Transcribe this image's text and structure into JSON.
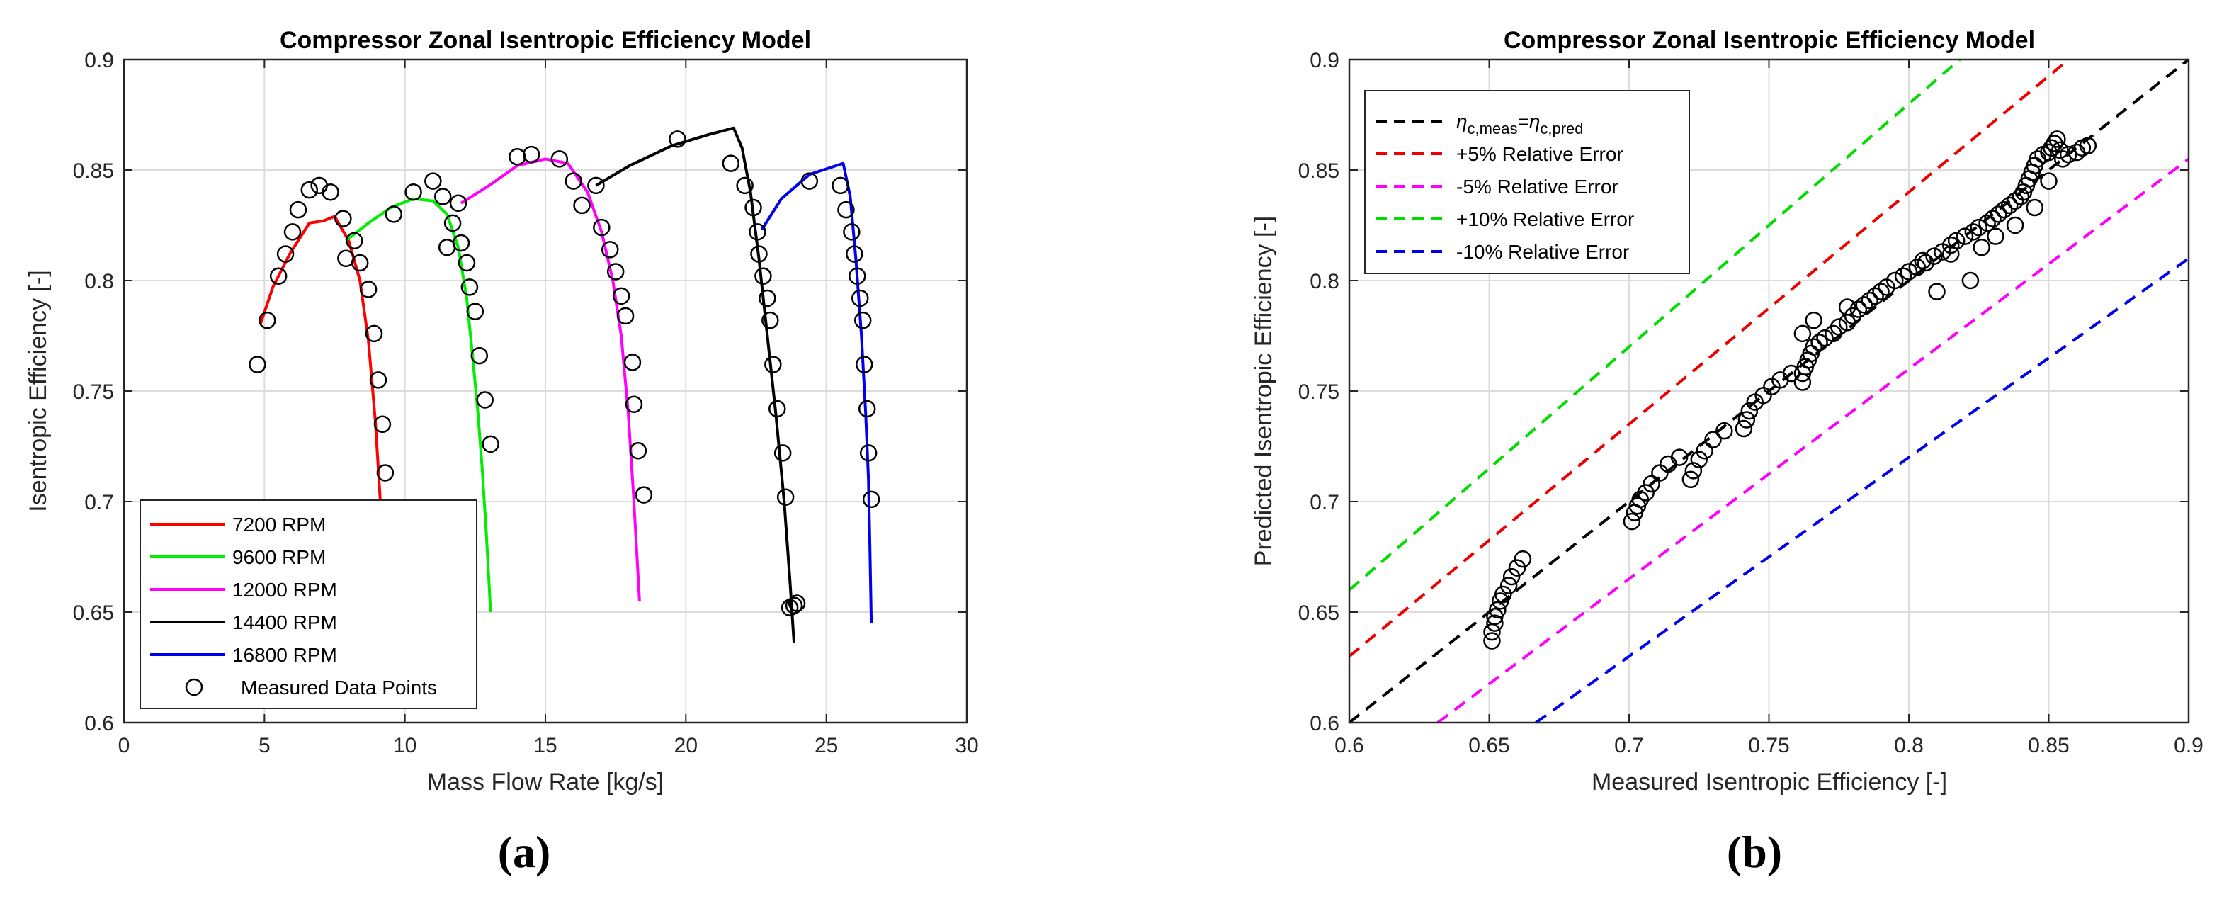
{
  "chart_data": [
    {
      "type": "line",
      "title": "Compressor Zonal Isentropic Efficiency Model",
      "xlabel": "Mass Flow Rate [kg/s]",
      "ylabel": "Isentropic Efficiency [-]",
      "xlim": [
        0,
        30
      ],
      "ylim": [
        0.6,
        0.9
      ],
      "xticks": [
        0,
        5,
        10,
        15,
        20,
        25,
        30
      ],
      "xtick_labels": [
        "0",
        "5",
        "10",
        "15",
        "20",
        "25",
        "30"
      ],
      "yticks": [
        0.6,
        0.65,
        0.7,
        0.75,
        0.8,
        0.85,
        0.9
      ],
      "ytick_labels": [
        "0.6",
        "0.65",
        "0.7",
        "0.75",
        "0.8",
        "0.85",
        "0.9"
      ],
      "grid": true,
      "legend_position": "bottom-left",
      "panel_label": "(a)",
      "series": [
        {
          "name": "7200 RPM",
          "color": "#ff0000",
          "x": [
            4.85,
            5.3,
            5.9,
            6.6,
            7.1,
            7.5,
            8.0,
            8.4,
            8.7,
            8.95,
            9.15
          ],
          "y": [
            0.78,
            0.797,
            0.812,
            0.826,
            0.827,
            0.829,
            0.818,
            0.8,
            0.773,
            0.736,
            0.695
          ]
        },
        {
          "name": "9600 RPM",
          "color": "#00ee00",
          "x": [
            7.9,
            8.7,
            9.5,
            10.3,
            11.0,
            11.5,
            11.9,
            12.2,
            12.4,
            12.6,
            12.75,
            12.9,
            13.05
          ],
          "y": [
            0.818,
            0.826,
            0.833,
            0.837,
            0.836,
            0.83,
            0.815,
            0.792,
            0.767,
            0.74,
            0.715,
            0.685,
            0.65
          ]
        },
        {
          "name": "12000 RPM",
          "color": "#ff00ff",
          "x": [
            12.0,
            13.0,
            14.0,
            15.0,
            15.8,
            16.5,
            17.0,
            17.4,
            17.7,
            17.95,
            18.15,
            18.35
          ],
          "y": [
            0.835,
            0.843,
            0.852,
            0.855,
            0.853,
            0.84,
            0.822,
            0.8,
            0.775,
            0.74,
            0.7,
            0.655
          ]
        },
        {
          "name": "14400 RPM",
          "color": "#000000",
          "x": [
            16.8,
            18.0,
            19.5,
            20.8,
            21.7,
            22.0,
            22.3,
            22.6,
            22.9,
            23.2,
            23.5,
            23.7,
            23.85
          ],
          "y": [
            0.843,
            0.852,
            0.861,
            0.866,
            0.869,
            0.86,
            0.84,
            0.81,
            0.775,
            0.74,
            0.7,
            0.665,
            0.636
          ]
        },
        {
          "name": "16800 RPM",
          "color": "#0000ee",
          "x": [
            22.7,
            23.4,
            24.4,
            25.6,
            25.85,
            26.05,
            26.25,
            26.4,
            26.5,
            26.55,
            26.6
          ],
          "y": [
            0.823,
            0.837,
            0.848,
            0.853,
            0.838,
            0.81,
            0.775,
            0.74,
            0.71,
            0.68,
            0.645
          ]
        },
        {
          "name": "Measured Data Points",
          "marker": "circle",
          "x": [
            4.75,
            5.1,
            5.5,
            5.75,
            6.0,
            6.2,
            6.6,
            6.95,
            7.35,
            7.8,
            7.9,
            8.2,
            8.4,
            8.7,
            8.9,
            9.05,
            9.2,
            9.3,
            9.6,
            10.3,
            11.0,
            11.35,
            11.5,
            11.7,
            11.9,
            12.0,
            12.2,
            12.3,
            12.5,
            12.65,
            12.85,
            13.05,
            14.0,
            14.5,
            15.5,
            16.0,
            16.3,
            16.8,
            17.0,
            17.3,
            17.5,
            17.7,
            17.85,
            18.1,
            18.15,
            18.3,
            18.5,
            19.7,
            21.6,
            22.1,
            22.4,
            22.55,
            22.6,
            22.75,
            22.9,
            23.0,
            23.1,
            23.25,
            23.45,
            23.55,
            23.7,
            23.85,
            23.95,
            24.4,
            25.5,
            25.7,
            25.9,
            26.0,
            26.1,
            26.2,
            26.3,
            26.35,
            26.45,
            26.5,
            26.6
          ],
          "y": [
            0.762,
            0.782,
            0.802,
            0.812,
            0.822,
            0.832,
            0.841,
            0.843,
            0.84,
            0.828,
            0.81,
            0.818,
            0.808,
            0.796,
            0.776,
            0.755,
            0.735,
            0.713,
            0.83,
            0.84,
            0.845,
            0.838,
            0.815,
            0.826,
            0.835,
            0.817,
            0.808,
            0.797,
            0.786,
            0.766,
            0.746,
            0.726,
            0.856,
            0.857,
            0.855,
            0.845,
            0.834,
            0.843,
            0.824,
            0.814,
            0.804,
            0.793,
            0.784,
            0.763,
            0.744,
            0.723,
            0.703,
            0.864,
            0.853,
            0.843,
            0.833,
            0.822,
            0.812,
            0.802,
            0.792,
            0.782,
            0.762,
            0.742,
            0.722,
            0.702,
            0.652,
            0.653,
            0.654,
            0.845,
            0.843,
            0.832,
            0.822,
            0.812,
            0.802,
            0.792,
            0.782,
            0.762,
            0.742,
            0.722,
            0.701
          ]
        }
      ]
    },
    {
      "type": "scatter",
      "title": "Compressor Zonal Isentropic Efficiency Model",
      "xlabel": "Measured Isentropic Efficiency [-]",
      "ylabel": "Predicted Isentropic Efficiency [-]",
      "xlim": [
        0.6,
        0.9
      ],
      "ylim": [
        0.6,
        0.9
      ],
      "xticks": [
        0.6,
        0.65,
        0.7,
        0.75,
        0.8,
        0.85,
        0.9
      ],
      "xtick_labels": [
        "0.6",
        "0.65",
        "0.7",
        "0.75",
        "0.8",
        "0.85",
        "0.9"
      ],
      "yticks": [
        0.6,
        0.65,
        0.7,
        0.75,
        0.8,
        0.85,
        0.9
      ],
      "ytick_labels": [
        "0.6",
        "0.65",
        "0.7",
        "0.75",
        "0.8",
        "0.85",
        "0.9"
      ],
      "grid": true,
      "legend_position": "top-left",
      "panel_label": "(b)",
      "reference_lines": [
        {
          "name": "η_c,meas=η_c,pred",
          "legend_main": "η",
          "legend_sub1": "c,meas",
          "legend_eq": "=η",
          "legend_sub2": "c,pred",
          "factor": 1.0,
          "color": "#000000"
        },
        {
          "name": "+5% Relative Error",
          "factor": 1.05,
          "color": "#ee0000"
        },
        {
          "name": "-5% Relative Error",
          "factor": 0.95,
          "color": "#ff00ff"
        },
        {
          "name": "+10% Relative Error",
          "factor": 1.1,
          "color": "#00dd00"
        },
        {
          "name": "-10% Relative Error",
          "factor": 0.9,
          "color": "#0000ee"
        }
      ],
      "points": {
        "x": [
          0.651,
          0.651,
          0.652,
          0.652,
          0.653,
          0.654,
          0.655,
          0.657,
          0.658,
          0.66,
          0.662,
          0.701,
          0.702,
          0.703,
          0.704,
          0.706,
          0.708,
          0.711,
          0.714,
          0.718,
          0.722,
          0.723,
          0.725,
          0.727,
          0.73,
          0.734,
          0.741,
          0.742,
          0.743,
          0.745,
          0.748,
          0.751,
          0.754,
          0.758,
          0.762,
          0.762,
          0.763,
          0.764,
          0.765,
          0.766,
          0.768,
          0.77,
          0.773,
          0.775,
          0.778,
          0.78,
          0.782,
          0.784,
          0.786,
          0.788,
          0.79,
          0.792,
          0.795,
          0.798,
          0.8,
          0.803,
          0.806,
          0.809,
          0.812,
          0.815,
          0.817,
          0.82,
          0.823,
          0.825,
          0.828,
          0.83,
          0.832,
          0.834,
          0.836,
          0.838,
          0.84,
          0.841,
          0.842,
          0.843,
          0.844,
          0.845,
          0.846,
          0.848,
          0.85,
          0.851,
          0.852,
          0.853,
          0.854,
          0.855,
          0.857,
          0.86,
          0.862,
          0.864,
          0.762,
          0.766,
          0.778,
          0.81,
          0.822,
          0.831,
          0.838,
          0.845,
          0.85,
          0.805,
          0.815,
          0.826
        ],
        "y": [
          0.637,
          0.641,
          0.645,
          0.648,
          0.651,
          0.655,
          0.658,
          0.662,
          0.666,
          0.67,
          0.674,
          0.691,
          0.695,
          0.698,
          0.701,
          0.704,
          0.708,
          0.713,
          0.717,
          0.72,
          0.71,
          0.714,
          0.719,
          0.723,
          0.728,
          0.732,
          0.733,
          0.737,
          0.741,
          0.745,
          0.748,
          0.752,
          0.755,
          0.758,
          0.754,
          0.758,
          0.761,
          0.764,
          0.767,
          0.77,
          0.772,
          0.774,
          0.776,
          0.779,
          0.781,
          0.784,
          0.787,
          0.789,
          0.791,
          0.793,
          0.795,
          0.797,
          0.8,
          0.802,
          0.804,
          0.806,
          0.808,
          0.811,
          0.813,
          0.816,
          0.818,
          0.82,
          0.822,
          0.824,
          0.826,
          0.828,
          0.83,
          0.832,
          0.834,
          0.836,
          0.838,
          0.84,
          0.843,
          0.846,
          0.849,
          0.852,
          0.855,
          0.857,
          0.858,
          0.86,
          0.862,
          0.864,
          0.859,
          0.855,
          0.857,
          0.858,
          0.86,
          0.861,
          0.776,
          0.782,
          0.788,
          0.795,
          0.8,
          0.82,
          0.825,
          0.833,
          0.845,
          0.809,
          0.812,
          0.815
        ]
      }
    }
  ]
}
